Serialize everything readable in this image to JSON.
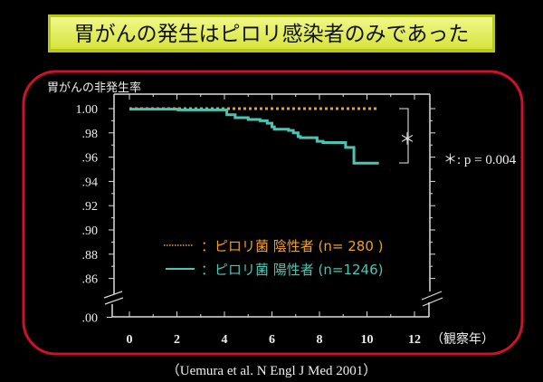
{
  "title": "胃がんの発生はピロリ感染者のみであった",
  "citation": "（Uemura et al. N Engl J Med 2001）",
  "colors": {
    "background": "#000000",
    "title_box": "#e4ef5a",
    "frame": "#d0102a",
    "negative": "#f0a020",
    "positive": "#4cc4b4",
    "axis": "#dddddd"
  },
  "chart_data": {
    "type": "line",
    "title": "",
    "ylabel": "胃がんの非発生率",
    "xlabel": "（観察年）",
    "xlim": [
      0,
      12
    ],
    "ylim": [
      0.86,
      1.0
    ],
    "y_axis_break": true,
    "x_ticks": [
      "0",
      "2",
      "4",
      "6",
      "8",
      "10",
      "12"
    ],
    "y_ticks": [
      "1.00",
      ".98",
      ".96",
      ".94",
      ".92",
      ".90",
      ".88",
      ".86",
      ".00"
    ],
    "y_tick_values": [
      1.0,
      0.98,
      0.96,
      0.94,
      0.92,
      0.9,
      0.88,
      0.86,
      0.0
    ],
    "annotation": "＊: p = 0.004",
    "bracket_label": "＊",
    "series": [
      {
        "name": "：ピロリ菌 陰性者 (n= 280 )",
        "style": "dotted",
        "color": "#f0a020",
        "x": [
          0,
          10.5
        ],
        "y": [
          1.0,
          1.0
        ]
      },
      {
        "name": "：ピロリ菌 陽性者 (n=1246)",
        "style": "solid",
        "color": "#4cc4b4",
        "x": [
          0,
          2.05,
          3.85,
          4.1,
          4.45,
          5.0,
          5.5,
          5.8,
          6.0,
          6.1,
          6.7,
          6.9,
          7.1,
          7.2,
          7.8,
          7.9,
          8.15,
          9.0,
          9.1,
          9.45,
          9.45,
          10.5
        ],
        "y": [
          0.9995,
          0.999,
          0.999,
          0.995,
          0.9925,
          0.991,
          0.99,
          0.988,
          0.985,
          0.983,
          0.982,
          0.98,
          0.977,
          0.976,
          0.976,
          0.973,
          0.972,
          0.972,
          0.968,
          0.966,
          0.955,
          0.955
        ]
      }
    ]
  }
}
